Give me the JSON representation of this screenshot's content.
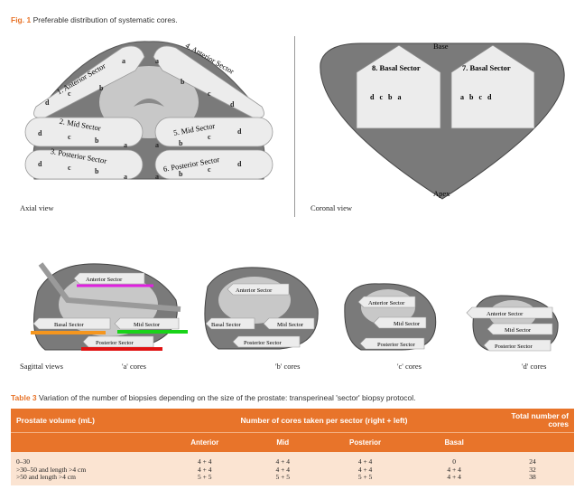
{
  "figure": {
    "label": "Fig. 1",
    "caption": "Preferable distribution of systematic cores.",
    "axial": {
      "view_label": "Axial view",
      "sectors": [
        "1. Anterior Sector",
        "4. Anterior Sector",
        "2. Mid Sector",
        "5. Mid Sector",
        "3. Posterior Sector",
        "6. Posterior Sector"
      ],
      "letters": {
        "a": "a",
        "b": "b",
        "c": "c",
        "d": "d"
      }
    },
    "coronal": {
      "view_label": "Coronal view",
      "base": "Base",
      "apex": "Apex",
      "sectors": [
        "8. Basal Sector",
        "7. Basal Sector"
      ],
      "left_cores": "d   c   b   a",
      "right_cores": "a   b   c   d"
    },
    "sagittal": {
      "view_label": "Sagittal views",
      "panels": [
        {
          "caption": "'a' cores",
          "labels": [
            "Anterior Sector",
            "Basal Sector",
            "Mid Sector",
            "Posterior Sector"
          ]
        },
        {
          "caption": "'b' cores",
          "labels": [
            "Anterior Sector",
            "Basal Sector",
            "Mid Sector",
            "Posterior Sector"
          ]
        },
        {
          "caption": "'c' cores",
          "labels": [
            "Anterior Sector",
            "Mid Sector",
            "Posterior Sector"
          ]
        },
        {
          "caption": "'d' cores",
          "labels": [
            "Anterior Sector",
            "Mid Sector",
            "Posterior Sector"
          ]
        }
      ],
      "colors": {
        "anterior": "#e020e0",
        "basal": "#f5961e",
        "mid": "#19d319",
        "posterior": "#e01212"
      }
    }
  },
  "table": {
    "label": "Table 3",
    "caption": "Variation of the number of biopsies depending on the size of the prostate: transperineal 'sector' biopsy protocol.",
    "col_volume": "Prostate volume (mL)",
    "col_group": "Number of cores taken per sector (right + left)",
    "col_total": "Total number of cores",
    "sub_headers": [
      "Anterior",
      "Mid",
      "Posterior",
      "Basal"
    ],
    "rows": [
      {
        "volume": "0–30",
        "anterior": "4 + 4",
        "mid": "4 + 4",
        "posterior": "4 + 4",
        "basal": "0",
        "total": "24"
      },
      {
        "volume": ">30–50 and length >4 cm",
        "anterior": "4 + 4",
        "mid": "4 + 4",
        "posterior": "4 + 4",
        "basal": "4 + 4",
        "total": "32"
      },
      {
        "volume": ">50 and length >4 cm",
        "anterior": "5 + 5",
        "mid": "5 + 5",
        "posterior": "5 + 5",
        "basal": "4 + 4",
        "total": "38"
      }
    ]
  }
}
